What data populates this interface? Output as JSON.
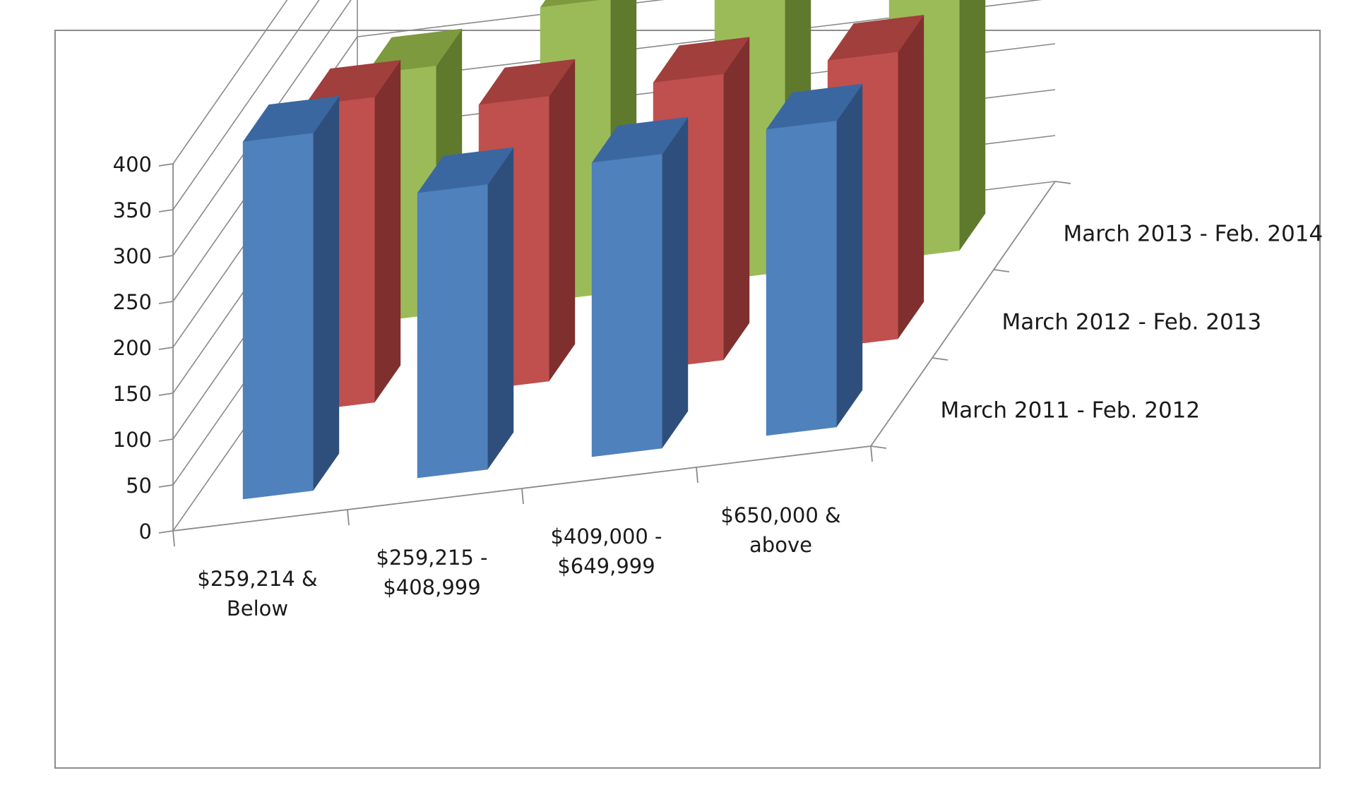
{
  "chart_data": {
    "type": "bar",
    "title": "",
    "xlabel": "",
    "ylabel": "",
    "ylim": [
      0,
      400
    ],
    "yticks": [
      0,
      50,
      100,
      150,
      200,
      250,
      300,
      350,
      400
    ],
    "grid": true,
    "legend": "series labels on depth axis (right)",
    "categories": [
      [
        "$259,214 &",
        "Below"
      ],
      [
        "$259,215 -",
        "$408,999"
      ],
      [
        "$409,000 -",
        "$649,999"
      ],
      [
        "$650,000 &",
        "above"
      ]
    ],
    "series": [
      {
        "name": "March 2011 - Feb. 2012",
        "values": [
          389,
          310,
          320,
          333
        ]
      },
      {
        "name": "March 2012 - Feb. 2013",
        "values": [
          332,
          310,
          311,
          312
        ]
      },
      {
        "name": "March 2013 - Feb. 2014",
        "values": [
          270,
          320,
          330,
          330
        ]
      }
    ],
    "colors": {
      "March 2011 - Feb. 2012": {
        "front": "#4f81bd",
        "side": "#2e4f7c",
        "top": "#3b67a0"
      },
      "March 2012 - Feb. 2013": {
        "front": "#c0504d",
        "side": "#7f2f2d",
        "top": "#a03f3c"
      },
      "March 2013 - Feb. 2014": {
        "front": "#9bbb59",
        "side": "#5f7a2c",
        "top": "#7d9a3f"
      }
    }
  }
}
